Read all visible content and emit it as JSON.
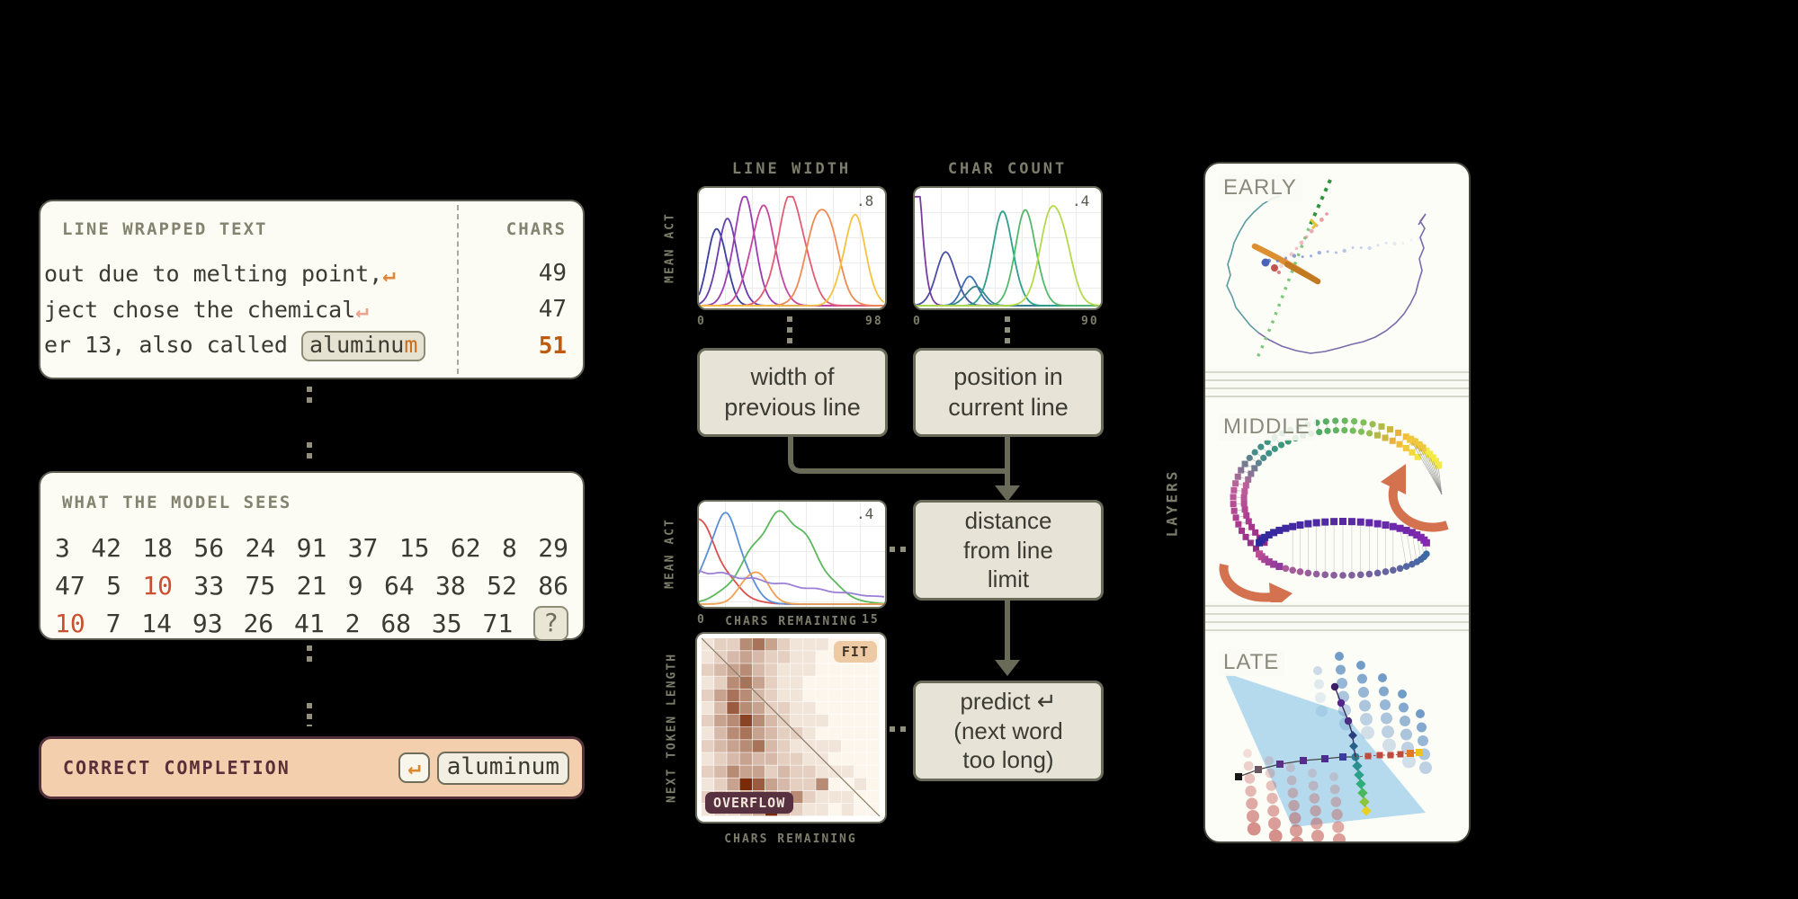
{
  "left": {
    "wrapped": {
      "title": "LINE WRAPPED TEXT",
      "chars_label": "CHARS",
      "rows": [
        {
          "text": "out due to melting point,",
          "chars": "49"
        },
        {
          "text": "ject chose the chemical",
          "chars": "47"
        },
        {
          "prefix": "er 13, also called ",
          "token_body": "aluminu",
          "token_tail": "m",
          "chars": "51"
        }
      ],
      "return_glyph": "↵"
    },
    "model": {
      "title": "WHAT THE MODEL SEES",
      "rows": [
        [
          "3",
          "42",
          "18",
          "56",
          "24",
          "91",
          "37",
          "15",
          "62",
          "8",
          "29"
        ],
        [
          "47",
          "5",
          "10",
          "33",
          "75",
          "21",
          "9",
          "64",
          "38",
          "52",
          "86"
        ],
        [
          "10",
          "7",
          "14",
          "93",
          "26",
          "41",
          "2",
          "68",
          "35",
          "71",
          "?"
        ]
      ],
      "red_cells": [
        [
          1,
          2
        ],
        [
          2,
          0
        ]
      ],
      "chip_cells": [
        [
          2,
          10
        ]
      ]
    },
    "completion": {
      "title": "CORRECT COMPLETION",
      "return_glyph": "↵",
      "token": "aluminum"
    }
  },
  "middle": {
    "boxes": [
      {
        "lines": [
          "width of",
          "previous line"
        ]
      },
      {
        "lines": [
          "position in",
          "current line"
        ]
      },
      {
        "lines": [
          "distance",
          "from line",
          "limit"
        ]
      },
      {
        "lines": [
          "predict ↵",
          "(next word",
          "too long)"
        ]
      }
    ]
  },
  "right": {
    "axis_label": "LAYERS",
    "sections": [
      {
        "label": "EARLY"
      },
      {
        "label": "MIDDLE"
      },
      {
        "label": "LATE"
      }
    ]
  },
  "chart_data": [
    {
      "id": "line_width",
      "type": "line",
      "title": "LINE WIDTH",
      "ylabel": "MEAN ACT",
      "corner": ".8",
      "x_ticks": [
        "0",
        "98"
      ],
      "xlim": [
        0,
        98
      ],
      "ylim": [
        0,
        0.8
      ],
      "grid": true,
      "note": "tuning curves of line-width features, one bell per preferred width",
      "series": [
        {
          "color": "#3b3f9e",
          "mu": 0.1,
          "sigma": 0.05,
          "amp": 0.7
        },
        {
          "color": "#6b3dae",
          "mu": 0.155,
          "sigma": 0.055,
          "amp": 0.74
        },
        {
          "color": "#9a3db4",
          "mu": 0.245,
          "sigma": 0.06,
          "amp": 0.94
        },
        {
          "color": "#c8479e",
          "mu": 0.345,
          "sigma": 0.068,
          "amp": 0.86
        },
        {
          "color": "#e25c72",
          "mu": 0.5,
          "sigma": 0.075,
          "amp": 0.96
        },
        {
          "color": "#f08a54",
          "mu": 0.665,
          "sigma": 0.075,
          "amp": 0.9
        },
        {
          "color": "#f5c242",
          "mu": 0.84,
          "sigma": 0.062,
          "amp": 0.78
        }
      ]
    },
    {
      "id": "char_count",
      "type": "line",
      "title": "CHAR COUNT",
      "ylabel": "",
      "corner": ".4",
      "x_ticks": [
        "0",
        "90"
      ],
      "xlim": [
        0,
        90
      ],
      "ylim": [
        0,
        0.4
      ],
      "grid": true,
      "note": "tuning curves of character-count features",
      "series": [
        {
          "color": "#7a3b9d",
          "mu": -0.04,
          "sigma": 0.05,
          "amp": 2.5
        },
        {
          "color": "#4c4fa3",
          "mu": 0.17,
          "sigma": 0.055,
          "amp": 0.46
        },
        {
          "color": "#3f6fb5",
          "mu": 0.3,
          "sigma": 0.045,
          "amp": 0.26
        },
        {
          "color": "#35848c",
          "mu": 0.325,
          "sigma": 0.05,
          "amp": 0.17
        },
        {
          "color": "#2ea08a",
          "mu": 0.475,
          "sigma": 0.058,
          "amp": 0.8
        },
        {
          "color": "#56b86b",
          "mu": 0.6,
          "sigma": 0.058,
          "amp": 0.82
        },
        {
          "color": "#b5d94a",
          "mu": 0.755,
          "sigma": 0.07,
          "amp": 0.92
        }
      ]
    },
    {
      "id": "chars_remaining",
      "type": "line",
      "title": "",
      "ylabel": "MEAN ACT",
      "xlabel": "CHARS REMAINING",
      "corner": ".4",
      "x_ticks": [
        "0",
        "15"
      ],
      "xlim": [
        0,
        15
      ],
      "ylim": [
        0,
        0.4
      ],
      "grid": true,
      "note": "tuning curves of chars-remaining-until-limit features",
      "series": [
        {
          "color": "#d94f4f",
          "mu": -0.06,
          "sigma": 0.15,
          "amp": 0.95
        },
        {
          "color": "#5b8fd4",
          "mu": 0.14,
          "sigma": 0.095,
          "amp": 0.9
        },
        {
          "color": "#5cb85c",
          "mu": 0.45,
          "sigma": 0.17,
          "amp": 0.92
        },
        {
          "color": "#f0a050",
          "mu": 0.3,
          "sigma": 0.07,
          "amp": 0.34
        },
        {
          "color": "#9b7fd4",
          "mu": -0.5,
          "sigma": 0.8,
          "amp": 0.42
        }
      ]
    },
    {
      "id": "fit_overflow",
      "type": "heatmap",
      "xlabel": "CHARS REMAINING",
      "ylabel": "NEXT TOKEN LENGTH",
      "badge_fit": "FIT",
      "badge_overflow": "OVERFLOW",
      "colorscale": [
        "#fdf6ec",
        "#7a2a08"
      ],
      "diagonal": true,
      "grid_values": [
        "12256421110000",
        "12343221100000",
        "23453211100000",
        "12564211000000",
        "24653211000000",
        "13754221100000",
        "24585321110000",
        "13564322100000",
        "23456321111000",
        "12343322110000",
        "23544232211100",
        "12497432250010",
        "23345435211100",
        "12234932110100"
      ]
    }
  ]
}
